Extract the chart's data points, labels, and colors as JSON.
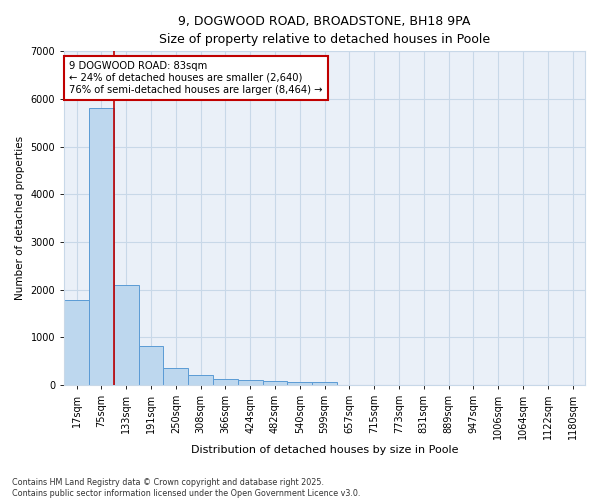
{
  "title_line1": "9, DOGWOOD ROAD, BROADSTONE, BH18 9PA",
  "title_line2": "Size of property relative to detached houses in Poole",
  "xlabel": "Distribution of detached houses by size in Poole",
  "ylabel": "Number of detached properties",
  "categories": [
    "17sqm",
    "75sqm",
    "133sqm",
    "191sqm",
    "250sqm",
    "308sqm",
    "366sqm",
    "424sqm",
    "482sqm",
    "540sqm",
    "599sqm",
    "657sqm",
    "715sqm",
    "773sqm",
    "831sqm",
    "889sqm",
    "947sqm",
    "1006sqm",
    "1064sqm",
    "1122sqm",
    "1180sqm"
  ],
  "values": [
    1780,
    5820,
    2090,
    820,
    360,
    210,
    130,
    100,
    85,
    65,
    55,
    0,
    0,
    0,
    0,
    0,
    0,
    0,
    0,
    0,
    0
  ],
  "bar_color": "#bdd7ee",
  "bar_edge_color": "#5b9bd5",
  "vline_x": 1.5,
  "vline_color": "#c00000",
  "annotation_text": "9 DOGWOOD ROAD: 83sqm\n← 24% of detached houses are smaller (2,640)\n76% of semi-detached houses are larger (8,464) →",
  "annotation_box_color": "#c00000",
  "background_color": "#eaf0f8",
  "grid_color": "#c8d8e8",
  "ylim": [
    0,
    7000
  ],
  "yticks": [
    0,
    1000,
    2000,
    3000,
    4000,
    5000,
    6000,
    7000
  ],
  "footer_line1": "Contains HM Land Registry data © Crown copyright and database right 2025.",
  "footer_line2": "Contains public sector information licensed under the Open Government Licence v3.0."
}
